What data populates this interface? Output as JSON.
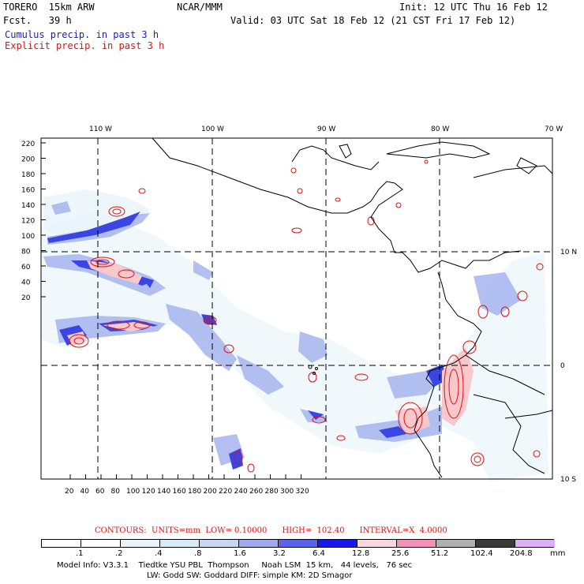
{
  "header": {
    "model": "TORERO  15km ARW",
    "org": "NCAR/MMM",
    "init": "Init: 12 UTC Thu 16 Feb 12",
    "fcst": "Fcst.   39 h",
    "valid": "Valid: 03 UTC Sat 18 Feb 12 (21 CST Fri 17 Feb 12)",
    "cumulus": "Cumulus precip. in past 3 h",
    "explicit": "Explicit precip. in past 3 h"
  },
  "map": {
    "lon_labels": [
      "110 W",
      "100 W",
      "90 W",
      "80 W",
      "70 W"
    ],
    "lat_labels": [
      "10 N",
      "0",
      "10 S"
    ],
    "y_ticks": [
      "220",
      "200",
      "180",
      "160",
      "140",
      "120",
      "100",
      "80",
      "60",
      "40",
      "20"
    ],
    "x_ticks": [
      "20",
      "40",
      "60",
      "80",
      "100",
      "120",
      "140",
      "160",
      "180",
      "200",
      "220",
      "240",
      "260",
      "280",
      "300",
      "320"
    ],
    "colors": {
      "coast": "#000000",
      "grid": "#000000",
      "light": "#e8f4fa",
      "mid": "#a6b4ee",
      "dark": "#3a46e4",
      "deep": "#0808e8",
      "pink": "#f8c8cc",
      "contour": "#e01010"
    }
  },
  "contours": {
    "label": "CONTOURS:  UNITS=mm  LOW= 0.10000      HIGH=  102.40      INTERVAL=X  4.0000"
  },
  "legend": {
    "labels": [
      ".1",
      ".2",
      ".4",
      ".8",
      "1.6",
      "3.2",
      "6.4",
      "12.8",
      "25.6",
      "51.2",
      "102.4",
      "204.8"
    ],
    "unit": "mm",
    "colors": [
      "#ffffff",
      "#ffffff",
      "#e8f4fa",
      "#d6ecf6",
      "#c8d8f4",
      "#a0aaec",
      "#5a64e8",
      "#1818e8",
      "#f8d8dc",
      "#f290b8",
      "#b0b0b0",
      "#3a3a3a",
      "#dcb0f4"
    ]
  },
  "model_info": {
    "line1": "Model Info: V3.3.1    Tiedtke YSU PBL  Thompson     Noah LSM  15 km,   44 levels,   76 sec",
    "line2": "LW: Godd SW: Goddard DIFF: simple KM: 2D Smagor"
  }
}
